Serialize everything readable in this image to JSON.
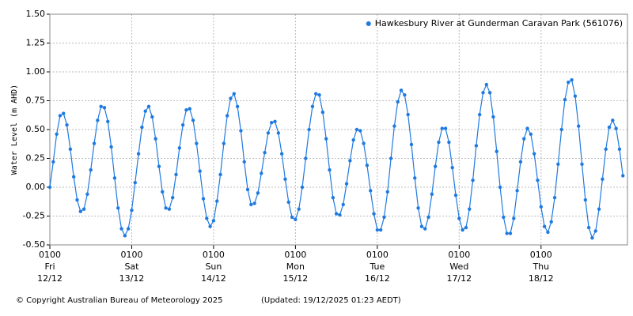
{
  "chart_data": {
    "type": "line",
    "y_label": "Water Level (m AHD)",
    "series": [
      {
        "name": "Hawkesbury River at Gunderman Caravan Park (561076)",
        "color": "#1f7ae0",
        "values": [
          0.0,
          0.22,
          0.46,
          0.62,
          0.64,
          0.54,
          0.33,
          0.09,
          -0.11,
          -0.21,
          -0.19,
          -0.06,
          0.15,
          0.38,
          0.58,
          0.7,
          0.69,
          0.57,
          0.35,
          0.08,
          -0.18,
          -0.36,
          -0.42,
          -0.36,
          -0.2,
          0.04,
          0.29,
          0.52,
          0.66,
          0.7,
          0.61,
          0.42,
          0.18,
          -0.04,
          -0.18,
          -0.19,
          -0.09,
          0.11,
          0.34,
          0.54,
          0.67,
          0.68,
          0.58,
          0.38,
          0.14,
          -0.1,
          -0.27,
          -0.34,
          -0.29,
          -0.12,
          0.11,
          0.38,
          0.62,
          0.77,
          0.81,
          0.7,
          0.49,
          0.22,
          -0.02,
          -0.15,
          -0.14,
          -0.05,
          0.12,
          0.3,
          0.47,
          0.56,
          0.57,
          0.47,
          0.29,
          0.07,
          -0.13,
          -0.26,
          -0.28,
          -0.19,
          0.0,
          0.25,
          0.5,
          0.7,
          0.81,
          0.8,
          0.65,
          0.42,
          0.15,
          -0.09,
          -0.23,
          -0.24,
          -0.15,
          0.03,
          0.23,
          0.41,
          0.5,
          0.49,
          0.38,
          0.19,
          -0.03,
          -0.23,
          -0.37,
          -0.37,
          -0.26,
          -0.04,
          0.25,
          0.53,
          0.74,
          0.84,
          0.8,
          0.63,
          0.37,
          0.08,
          -0.18,
          -0.34,
          -0.36,
          -0.26,
          -0.06,
          0.18,
          0.39,
          0.51,
          0.51,
          0.39,
          0.17,
          -0.07,
          -0.27,
          -0.37,
          -0.35,
          -0.19,
          0.06,
          0.36,
          0.63,
          0.82,
          0.89,
          0.82,
          0.61,
          0.31,
          0.0,
          -0.26,
          -0.4,
          -0.4,
          -0.27,
          -0.03,
          0.22,
          0.42,
          0.51,
          0.46,
          0.29,
          0.06,
          -0.17,
          -0.34,
          -0.39,
          -0.3,
          -0.09,
          0.2,
          0.5,
          0.76,
          0.91,
          0.93,
          0.79,
          0.53,
          0.2,
          -0.11,
          -0.35,
          -0.44,
          -0.38,
          -0.19,
          0.07,
          0.33,
          0.52,
          0.58,
          0.51,
          0.33,
          0.1
        ]
      }
    ],
    "x": [
      "12/12 0100",
      "12/12 0200",
      "12/12 0300",
      "12/12 0400",
      "12/12 0500",
      "12/12 0600",
      "12/12 0700",
      "12/12 0800",
      "12/12 0900",
      "12/12 1000",
      "12/12 1100",
      "12/12 1200",
      "12/12 1300",
      "12/12 1400",
      "12/12 1500",
      "12/12 1600",
      "12/12 1700",
      "12/12 1800",
      "12/12 1900",
      "12/12 2000",
      "12/12 2100",
      "12/12 2200",
      "12/12 2300",
      "13/12 0000",
      "13/12 0100",
      "13/12 0200",
      "13/12 0300",
      "13/12 0400",
      "13/12 0500",
      "13/12 0600",
      "13/12 0700",
      "13/12 0800",
      "13/12 0900",
      "13/12 1000",
      "13/12 1100",
      "13/12 1200",
      "13/12 1300",
      "13/12 1400",
      "13/12 1500",
      "13/12 1600",
      "13/12 1700",
      "13/12 1800",
      "13/12 1900",
      "13/12 2000",
      "13/12 2100",
      "13/12 2200",
      "13/12 2300",
      "14/12 0000",
      "14/12 0100",
      "14/12 0200",
      "14/12 0300",
      "14/12 0400",
      "14/12 0500",
      "14/12 0600",
      "14/12 0700",
      "14/12 0800",
      "14/12 0900",
      "14/12 1000",
      "14/12 1100",
      "14/12 1200",
      "14/12 1300",
      "14/12 1400",
      "14/12 1500",
      "14/12 1600",
      "14/12 1700",
      "14/12 1800",
      "14/12 1900",
      "14/12 2000",
      "14/12 2100",
      "14/12 2200",
      "14/12 2300",
      "15/12 0000",
      "15/12 0100",
      "15/12 0200",
      "15/12 0300",
      "15/12 0400",
      "15/12 0500",
      "15/12 0600",
      "15/12 0700",
      "15/12 0800",
      "15/12 0900",
      "15/12 1000",
      "15/12 1100",
      "15/12 1200",
      "15/12 1300",
      "15/12 1400",
      "15/12 1500",
      "15/12 1600",
      "15/12 1700",
      "15/12 1800",
      "15/12 1900",
      "15/12 2000",
      "15/12 2100",
      "15/12 2200",
      "15/12 2300",
      "16/12 0000",
      "16/12 0100",
      "16/12 0200",
      "16/12 0300",
      "16/12 0400",
      "16/12 0500",
      "16/12 0600",
      "16/12 0700",
      "16/12 0800",
      "16/12 0900",
      "16/12 1000",
      "16/12 1100",
      "16/12 1200",
      "16/12 1300",
      "16/12 1400",
      "16/12 1500",
      "16/12 1600",
      "16/12 1700",
      "16/12 1800",
      "16/12 1900",
      "16/12 2000",
      "16/12 2100",
      "16/12 2200",
      "16/12 2300",
      "17/12 0000",
      "17/12 0100",
      "17/12 0200",
      "17/12 0300",
      "17/12 0400",
      "17/12 0500",
      "17/12 0600",
      "17/12 0700",
      "17/12 0800",
      "17/12 0900",
      "17/12 1000",
      "17/12 1100",
      "17/12 1200",
      "17/12 1300",
      "17/12 1400",
      "17/12 1500",
      "17/12 1600",
      "17/12 1700",
      "17/12 1800",
      "17/12 1900",
      "17/12 2000",
      "17/12 2100",
      "17/12 2200",
      "17/12 2300",
      "18/12 0000",
      "18/12 0100",
      "18/12 0200",
      "18/12 0300",
      "18/12 0400",
      "18/12 0500",
      "18/12 0600",
      "18/12 0700",
      "18/12 0800",
      "18/12 0900",
      "18/12 1000",
      "18/12 1100",
      "18/12 1200",
      "18/12 1300",
      "18/12 1400",
      "18/12 1500",
      "18/12 1600",
      "18/12 1700",
      "18/12 1800",
      "18/12 1900",
      "18/12 2000",
      "18/12 2100",
      "18/12 2200",
      "18/12 2300",
      "19/12 0000",
      "19/12 0100"
    ],
    "xlim": [
      "12/12 0100",
      "19/12 0220"
    ],
    "xticks": [
      {
        "time": "0100",
        "day": "Fri",
        "date": "12/12"
      },
      {
        "time": "0100",
        "day": "Sat",
        "date": "13/12"
      },
      {
        "time": "0100",
        "day": "Sun",
        "date": "14/12"
      },
      {
        "time": "0100",
        "day": "Mon",
        "date": "15/12"
      },
      {
        "time": "0100",
        "day": "Tue",
        "date": "16/12"
      },
      {
        "time": "0100",
        "day": "Wed",
        "date": "17/12"
      },
      {
        "time": "0100",
        "day": "Thu",
        "date": "18/12"
      }
    ],
    "ylim": [
      -0.5,
      1.5
    ],
    "yticks": [
      {
        "value": 1.5,
        "label": "1.50"
      },
      {
        "value": 1.25,
        "label": "1.25"
      },
      {
        "value": 1,
        "label": "1.00"
      },
      {
        "value": 0.75,
        "label": "0.75"
      },
      {
        "value": 0.5,
        "label": "0.50"
      },
      {
        "value": 0.25,
        "label": "0.25"
      },
      {
        "value": 0,
        "label": "0.00"
      },
      {
        "value": -0.25,
        "label": "-0.25"
      },
      {
        "value": -0.5,
        "label": "-0.50"
      }
    ],
    "grid": true,
    "legend": "top-right"
  },
  "footer": {
    "copyright": "© Copyright Australian Bureau of Meteorology 2025",
    "updated": "(Updated: 19/12/2025 01:23 AEDT)"
  }
}
